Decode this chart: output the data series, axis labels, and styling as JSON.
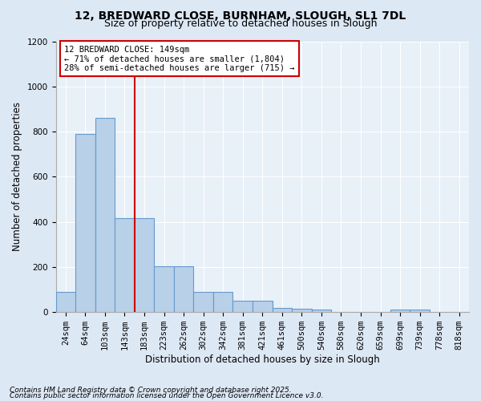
{
  "title_line1": "12, BREDWARD CLOSE, BURNHAM, SLOUGH, SL1 7DL",
  "title_line2": "Size of property relative to detached houses in Slough",
  "xlabel": "Distribution of detached houses by size in Slough",
  "ylabel": "Number of detached properties",
  "categories": [
    "24sqm",
    "64sqm",
    "103sqm",
    "143sqm",
    "183sqm",
    "223sqm",
    "262sqm",
    "302sqm",
    "342sqm",
    "381sqm",
    "421sqm",
    "461sqm",
    "500sqm",
    "540sqm",
    "580sqm",
    "620sqm",
    "659sqm",
    "699sqm",
    "739sqm",
    "778sqm",
    "818sqm"
  ],
  "values": [
    90,
    790,
    860,
    415,
    415,
    205,
    205,
    90,
    90,
    50,
    50,
    20,
    15,
    10,
    0,
    0,
    0,
    10,
    10,
    0,
    0
  ],
  "bar_color": "#b8d0e8",
  "bar_edge_color": "#6699cc",
  "vline_x_index": 3,
  "vline_color": "#cc0000",
  "annotation_text": "12 BREDWARD CLOSE: 149sqm\n← 71% of detached houses are smaller (1,804)\n28% of semi-detached houses are larger (715) →",
  "annotation_box_color": "#ffffff",
  "annotation_box_edge": "#cc0000",
  "ylim": [
    0,
    1200
  ],
  "yticks": [
    0,
    200,
    400,
    600,
    800,
    1000,
    1200
  ],
  "bg_color": "#dde8f5",
  "plot_bg_color": "#e8f0f8",
  "footer_line1": "Contains HM Land Registry data © Crown copyright and database right 2025.",
  "footer_line2": "Contains public sector information licensed under the Open Government Licence v3.0.",
  "title_fontsize": 10,
  "subtitle_fontsize": 9,
  "axis_label_fontsize": 8.5,
  "tick_fontsize": 7.5,
  "annotation_fontsize": 7.5,
  "footer_fontsize": 6.5
}
